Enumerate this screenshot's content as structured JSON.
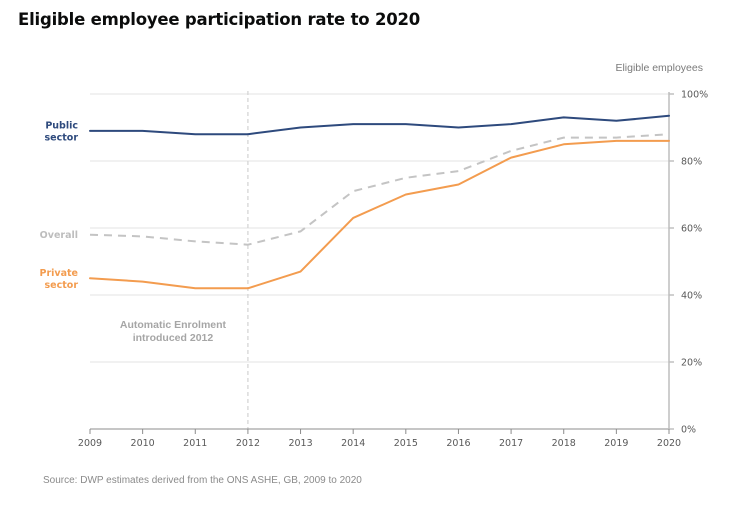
{
  "title": "Eligible employee participation rate to 2020",
  "source": "Source: DWP estimates derived from the ONS ASHE,  GB, 2009 to 2020",
  "chart_data": {
    "type": "line",
    "title": "Eligible employee participation rate to 2020",
    "xlabel": "",
    "ylabel": "Eligible employees",
    "x": [
      2009,
      2010,
      2011,
      2012,
      2013,
      2014,
      2015,
      2016,
      2017,
      2018,
      2019,
      2020
    ],
    "x_tick_labels": [
      "2009",
      "2010",
      "2011",
      "2012",
      "2013",
      "2014",
      "2015",
      "2016",
      "2017",
      "2018",
      "2019",
      "2020"
    ],
    "ylim": [
      0,
      100
    ],
    "y_ticks": [
      0,
      20,
      40,
      60,
      80,
      100
    ],
    "y_tick_labels": [
      "0%",
      "20%",
      "40%",
      "60%",
      "80%",
      "100%"
    ],
    "y_axis_side": "right",
    "grid": true,
    "legend": "inline-left",
    "series": [
      {
        "name": "Public sector",
        "label_lines": [
          "Public",
          "sector"
        ],
        "color": "#2e4a7d",
        "style": "solid",
        "values": [
          89,
          89,
          88,
          88,
          90,
          91,
          91,
          90,
          91,
          93,
          92,
          93.5
        ]
      },
      {
        "name": "Overall",
        "label_lines": [
          "Overall"
        ],
        "color": "#c4c4c4",
        "style": "dashed",
        "values": [
          58,
          57.5,
          56,
          55,
          59,
          71,
          75,
          77,
          83,
          87,
          87,
          88
        ]
      },
      {
        "name": "Private sector",
        "label_lines": [
          "Private",
          "sector"
        ],
        "color": "#f39c4f",
        "style": "solid",
        "values": [
          45,
          44,
          42,
          42,
          47,
          63,
          70,
          73,
          81,
          85,
          86,
          86
        ]
      }
    ],
    "annotations": [
      {
        "x": 2012,
        "type": "vertical-dashed-line",
        "text_lines": [
          "Automatic  Enrolment",
          "introduced 2012"
        ]
      }
    ]
  }
}
